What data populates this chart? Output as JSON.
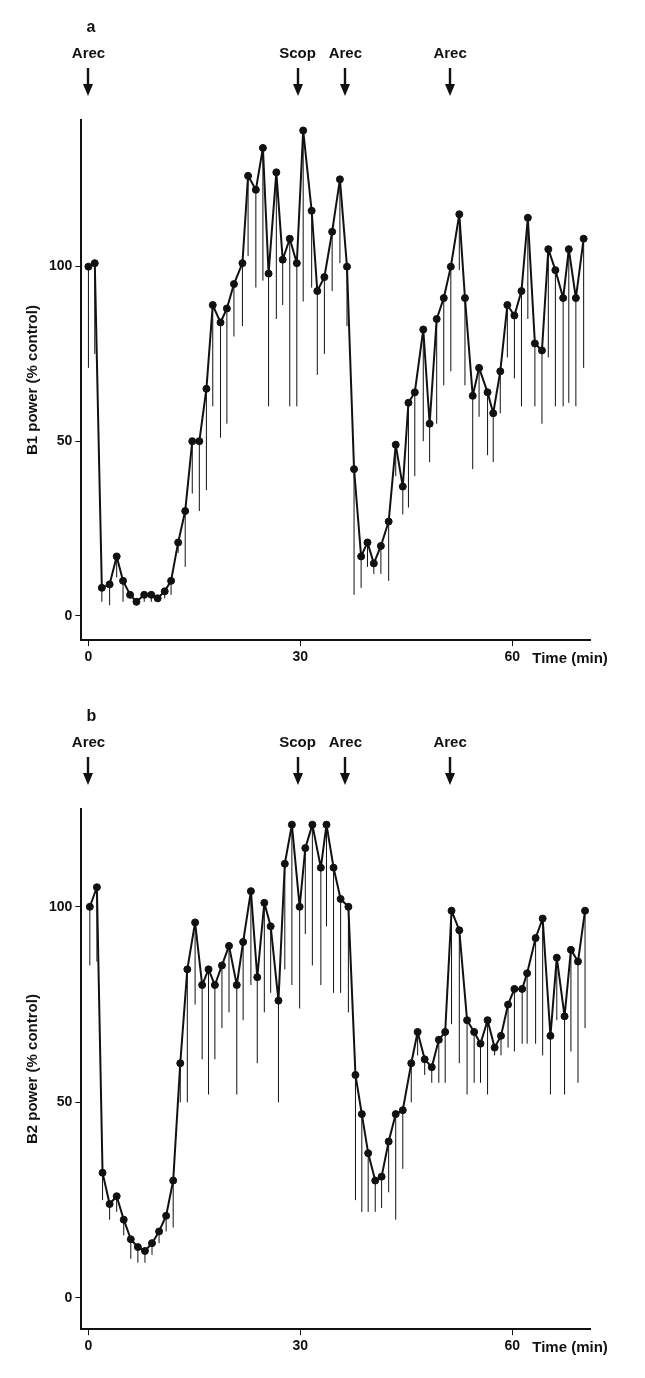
{
  "chart_data": [
    {
      "type": "line",
      "title": "a",
      "xlabel": "Time (min)",
      "ylabel": "B1 power (% control)",
      "xlim": [
        -1,
        71
      ],
      "xticks": [
        0,
        30,
        60
      ],
      "ylim": [
        -7,
        142
      ],
      "yticks": [
        0,
        50,
        100
      ],
      "grid": false,
      "legend": false,
      "marker": "circle",
      "line_style": "solid",
      "annotations": [
        "Arec",
        "Scop",
        "Arec",
        "Arec"
      ],
      "series": [
        {
          "color": "#111111",
          "x": [
            0,
            0.9,
            1.9,
            3,
            4,
            4.9,
            5.9,
            6.8,
            7.9,
            8.9,
            9.8,
            10.8,
            11.7,
            12.7,
            13.7,
            14.7,
            15.7,
            16.7,
            17.6,
            18.7,
            19.6,
            20.6,
            21.8,
            22.6,
            23.7,
            24.7,
            25.5,
            26.6,
            27.5,
            28.5,
            29.5,
            30.4,
            31.6,
            32.4,
            33.4,
            34.5,
            35.6,
            36.6,
            37.6,
            38.6,
            39.5,
            40.4,
            41.4,
            42.5,
            43.5,
            44.5,
            45.3,
            46.2,
            47.4,
            48.3,
            49.3,
            50.3,
            51.3,
            52.5,
            53.3,
            54.4,
            55.3,
            56.5,
            57.3,
            58.3,
            59.3,
            60.3,
            61.3,
            62.2,
            63.2,
            64.2,
            65.1,
            66.1,
            67.2,
            68,
            69,
            70.1
          ],
          "values": [
            100,
            101,
            8,
            9,
            17,
            10,
            6,
            4,
            6,
            6,
            5,
            7,
            10,
            21,
            30,
            50,
            50,
            65,
            89,
            84,
            88,
            95,
            101,
            126,
            122,
            134,
            98,
            127,
            102,
            108,
            101,
            139,
            116,
            93,
            97,
            110,
            125,
            100,
            42,
            17,
            21,
            15,
            20,
            27,
            49,
            37,
            61,
            64,
            82,
            55,
            85,
            91,
            100,
            115,
            91,
            63,
            71,
            64,
            58,
            70,
            89,
            86,
            93,
            114,
            78,
            76,
            105,
            99,
            91,
            105,
            91,
            108
          ],
          "errors": [
            [
              71,
              100
            ],
            [
              75,
              101
            ],
            [
              4,
              8
            ],
            [
              3,
              9
            ],
            [
              11,
              17
            ],
            [
              4,
              10
            ],
            [
              5,
              6
            ],
            [
              3,
              4
            ],
            [
              4,
              6
            ],
            [
              4,
              6
            ],
            [
              4,
              5
            ],
            [
              5,
              7
            ],
            [
              6,
              10
            ],
            [
              18,
              21
            ],
            [
              14,
              30
            ],
            [
              35,
              50
            ],
            [
              30,
              50
            ],
            [
              36,
              65
            ],
            [
              60,
              89
            ],
            [
              51,
              84
            ],
            [
              55,
              88
            ],
            [
              80,
              95
            ],
            [
              83,
              101
            ],
            [
              103,
              126
            ],
            [
              94,
              122
            ],
            [
              96,
              134
            ],
            [
              60,
              98
            ],
            [
              85,
              127
            ],
            [
              89,
              102
            ],
            [
              60,
              108
            ],
            [
              60,
              101
            ],
            [
              90,
              139
            ],
            [
              94,
              116
            ],
            [
              69,
              93
            ],
            [
              75,
              97
            ],
            [
              93,
              110
            ],
            [
              101,
              125
            ],
            [
              83,
              100
            ],
            [
              6,
              42
            ],
            [
              8,
              17
            ],
            [
              14,
              21
            ],
            [
              12,
              15
            ],
            [
              12,
              20
            ],
            [
              10,
              27
            ],
            [
              40,
              49
            ],
            [
              29,
              37
            ],
            [
              31,
              61
            ],
            [
              40,
              64
            ],
            [
              50,
              82
            ],
            [
              44,
              55
            ],
            [
              55,
              85
            ],
            [
              66,
              91
            ],
            [
              70,
              100
            ],
            [
              99,
              115
            ],
            [
              66,
              91
            ],
            [
              42,
              63
            ],
            [
              57,
              71
            ],
            [
              46,
              64
            ],
            [
              44,
              58
            ],
            [
              58,
              70
            ],
            [
              74,
              89
            ],
            [
              68,
              86
            ],
            [
              60,
              93
            ],
            [
              85,
              114
            ],
            [
              60,
              78
            ],
            [
              55,
              76
            ],
            [
              74,
              105
            ],
            [
              60,
              99
            ],
            [
              60,
              91
            ],
            [
              61,
              105
            ],
            [
              60,
              91
            ],
            [
              71,
              108
            ]
          ]
        }
      ]
    },
    {
      "type": "line",
      "title": "b",
      "xlabel": "Time (min)",
      "ylabel": "B2 power (% control)",
      "xlim": [
        -1,
        71
      ],
      "xticks": [
        0,
        30,
        60
      ],
      "ylim": [
        -8,
        125
      ],
      "yticks": [
        0,
        50,
        100
      ],
      "grid": false,
      "legend": false,
      "marker": "circle",
      "line_style": "solid",
      "annotations": [
        "Arec",
        "Scop",
        "Arec",
        "Arec"
      ],
      "series": [
        {
          "color": "#111111",
          "x": [
            0.2,
            1.2,
            2,
            3,
            4,
            5,
            6,
            7,
            8,
            9,
            10,
            11,
            12,
            13,
            14,
            15.1,
            16.1,
            17,
            17.9,
            18.9,
            19.9,
            21,
            21.9,
            23,
            23.9,
            24.9,
            25.8,
            26.9,
            27.8,
            28.8,
            29.9,
            30.7,
            31.7,
            32.9,
            33.7,
            34.7,
            35.7,
            36.8,
            37.8,
            38.7,
            39.6,
            40.6,
            41.5,
            42.5,
            43.5,
            44.5,
            45.7,
            46.6,
            47.6,
            48.6,
            49.6,
            50.5,
            51.4,
            52.5,
            53.6,
            54.6,
            55.5,
            56.5,
            57.5,
            58.4,
            59.4,
            60.3,
            61.4,
            62.1,
            63.3,
            64.3,
            65.4,
            66.3,
            67.4,
            68.3,
            69.3,
            70.3
          ],
          "values": [
            100,
            105,
            32,
            24,
            26,
            20,
            15,
            13,
            12,
            14,
            17,
            21,
            30,
            60,
            84,
            96,
            80,
            84,
            80,
            85,
            90,
            80,
            91,
            104,
            82,
            101,
            95,
            76,
            111,
            121,
            100,
            115,
            121,
            110,
            121,
            110,
            102,
            100,
            57,
            47,
            37,
            30,
            31,
            40,
            47,
            48,
            60,
            68,
            61,
            59,
            66,
            68,
            99,
            94,
            71,
            68,
            65,
            71,
            64,
            67,
            75,
            79,
            79,
            83,
            92,
            97,
            67,
            87,
            72,
            89,
            86,
            99
          ],
          "errors": [
            [
              85,
              100
            ],
            [
              86,
              105
            ],
            [
              25,
              32
            ],
            [
              20,
              24
            ],
            [
              22,
              26
            ],
            [
              16,
              20
            ],
            [
              10,
              15
            ],
            [
              9,
              13
            ],
            [
              9,
              12
            ],
            [
              11,
              14
            ],
            [
              14,
              17
            ],
            [
              17,
              21
            ],
            [
              18,
              30
            ],
            [
              50,
              60
            ],
            [
              50,
              84
            ],
            [
              75,
              96
            ],
            [
              61,
              80
            ],
            [
              52,
              84
            ],
            [
              61,
              80
            ],
            [
              69,
              85
            ],
            [
              73,
              90
            ],
            [
              52,
              80
            ],
            [
              71,
              91
            ],
            [
              80,
              104
            ],
            [
              60,
              82
            ],
            [
              73,
              101
            ],
            [
              78,
              95
            ],
            [
              50,
              76
            ],
            [
              84,
              111
            ],
            [
              80,
              121
            ],
            [
              74,
              100
            ],
            [
              93,
              115
            ],
            [
              85,
              121
            ],
            [
              80,
              110
            ],
            [
              95,
              121
            ],
            [
              78,
              110
            ],
            [
              78,
              102
            ],
            [
              73,
              100
            ],
            [
              25,
              57
            ],
            [
              22,
              47
            ],
            [
              22,
              37
            ],
            [
              22,
              30
            ],
            [
              23,
              31
            ],
            [
              27,
              40
            ],
            [
              20,
              47
            ],
            [
              33,
              48
            ],
            [
              50,
              60
            ],
            [
              62,
              68
            ],
            [
              57,
              61
            ],
            [
              55,
              59
            ],
            [
              55,
              66
            ],
            [
              55,
              68
            ],
            [
              70,
              99
            ],
            [
              60,
              94
            ],
            [
              52,
              71
            ],
            [
              55,
              68
            ],
            [
              55,
              65
            ],
            [
              52,
              71
            ],
            [
              62,
              64
            ],
            [
              62,
              67
            ],
            [
              64,
              75
            ],
            [
              63,
              79
            ],
            [
              65,
              79
            ],
            [
              65,
              83
            ],
            [
              65,
              92
            ],
            [
              62,
              97
            ],
            [
              52,
              67
            ],
            [
              71,
              87
            ],
            [
              52,
              72
            ],
            [
              63,
              89
            ],
            [
              55,
              86
            ],
            [
              69,
              99
            ]
          ]
        }
      ]
    }
  ]
}
